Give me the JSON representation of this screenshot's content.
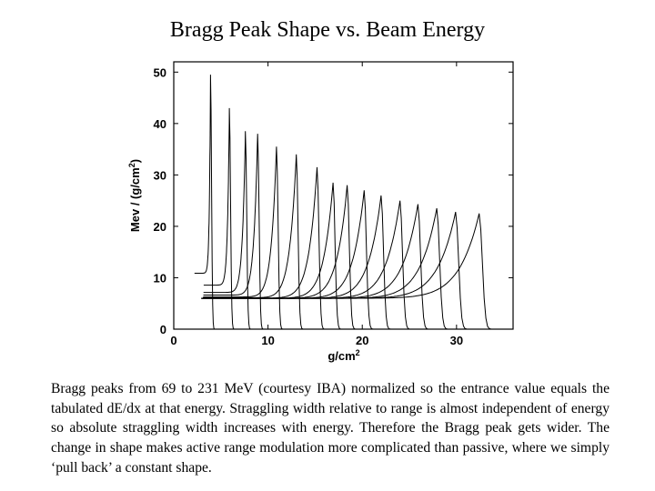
{
  "title": "Bragg Peak Shape vs. Beam Energy",
  "chart_data": {
    "type": "line",
    "title": "",
    "xlabel": "g/cm",
    "xlabel_superscript": "2",
    "ylabel": "Mev / (g/cm",
    "ylabel_superscript": "2",
    "ylabel_suffix": ")",
    "xlim": [
      0,
      36
    ],
    "ylim": [
      0,
      52
    ],
    "xticks": [
      0,
      10,
      20,
      30
    ],
    "yticks": [
      0,
      10,
      20,
      30,
      40,
      50
    ],
    "legend": "none",
    "grid": false,
    "line_color": "#000000",
    "entrance_value": 6.0,
    "peaks": [
      {
        "range": 3.9,
        "height": 49.5,
        "entrance": 14.3
      },
      {
        "range": 5.9,
        "height": 43.0,
        "entrance": 12.0
      },
      {
        "range": 7.6,
        "height": 38.5,
        "entrance": 10.6
      },
      {
        "range": 8.9,
        "height": 38.0,
        "entrance": 9.8
      },
      {
        "range": 10.9,
        "height": 35.5,
        "entrance": 9.0
      },
      {
        "range": 13.0,
        "height": 34.0,
        "entrance": 8.5
      },
      {
        "range": 15.2,
        "height": 31.5,
        "entrance": 8.0
      },
      {
        "range": 16.9,
        "height": 28.5,
        "entrance": 7.7
      },
      {
        "range": 18.4,
        "height": 28.0,
        "entrance": 7.5
      },
      {
        "range": 20.2,
        "height": 27.0,
        "entrance": 7.3
      },
      {
        "range": 22.0,
        "height": 26.0,
        "entrance": 7.1
      },
      {
        "range": 24.0,
        "height": 25.0,
        "entrance": 6.9
      },
      {
        "range": 25.9,
        "height": 24.3,
        "entrance": 6.8
      },
      {
        "range": 27.9,
        "height": 23.5,
        "entrance": 6.7
      },
      {
        "range": 29.9,
        "height": 22.8,
        "entrance": 6.6
      },
      {
        "range": 32.4,
        "height": 22.5,
        "entrance": 6.5
      }
    ]
  },
  "caption": "Bragg peaks from 69 to 231 MeV (courtesy IBA) normalized so the entrance value equals the tabulated dE/dx at that energy. Straggling width relative to range is almost independent of energy so absolute straggling width increases with energy. Therefore the Bragg peak gets wider. The change in shape makes active range modulation more complicated than passive, where we simply ‘pull back’ a constant shape."
}
